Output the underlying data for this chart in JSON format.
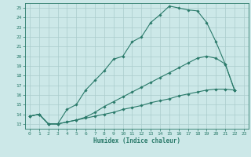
{
  "xlabel": "Humidex (Indice chaleur)",
  "bg_color": "#cce8e8",
  "grid_color": "#aacccc",
  "line_color": "#2a7a6a",
  "xlim": [
    -0.5,
    23.5
  ],
  "ylim": [
    12.5,
    25.5
  ],
  "xticks": [
    0,
    1,
    2,
    3,
    4,
    5,
    6,
    7,
    8,
    9,
    10,
    11,
    12,
    13,
    14,
    15,
    16,
    17,
    18,
    19,
    20,
    21,
    22,
    23
  ],
  "yticks": [
    13,
    14,
    15,
    16,
    17,
    18,
    19,
    20,
    21,
    22,
    23,
    24,
    25
  ],
  "curves": [
    {
      "x": [
        0,
        1,
        2,
        3,
        4,
        5,
        6,
        7,
        8,
        9,
        10,
        11,
        12,
        13,
        14,
        15,
        16,
        17,
        18,
        19,
        20,
        21,
        22
      ],
      "y": [
        13.8,
        14.0,
        13.0,
        13.0,
        14.5,
        15.0,
        16.5,
        17.5,
        18.5,
        19.7,
        20.0,
        21.5,
        22.0,
        23.5,
        24.3,
        25.2,
        25.0,
        24.8,
        24.7,
        23.5,
        21.5,
        19.2,
        16.5
      ]
    },
    {
      "x": [
        0,
        1,
        2,
        3,
        4,
        5,
        6,
        7,
        8,
        9,
        10,
        11,
        12,
        13,
        14,
        15,
        16,
        17,
        18,
        19,
        20,
        21,
        22
      ],
      "y": [
        13.8,
        14.0,
        13.0,
        13.0,
        13.2,
        13.4,
        13.7,
        14.2,
        14.8,
        15.3,
        15.8,
        16.3,
        16.8,
        17.3,
        17.8,
        18.3,
        18.8,
        19.3,
        19.8,
        20.0,
        19.8,
        19.2,
        16.5
      ]
    },
    {
      "x": [
        0,
        1,
        2,
        3,
        4,
        5,
        6,
        7,
        8,
        9,
        10,
        11,
        12,
        13,
        14,
        15,
        16,
        17,
        18,
        19,
        20,
        21,
        22
      ],
      "y": [
        13.8,
        14.0,
        13.0,
        13.0,
        13.2,
        13.4,
        13.6,
        13.8,
        14.0,
        14.2,
        14.5,
        14.7,
        14.9,
        15.2,
        15.4,
        15.6,
        15.9,
        16.1,
        16.3,
        16.5,
        16.6,
        16.6,
        16.5
      ]
    }
  ]
}
